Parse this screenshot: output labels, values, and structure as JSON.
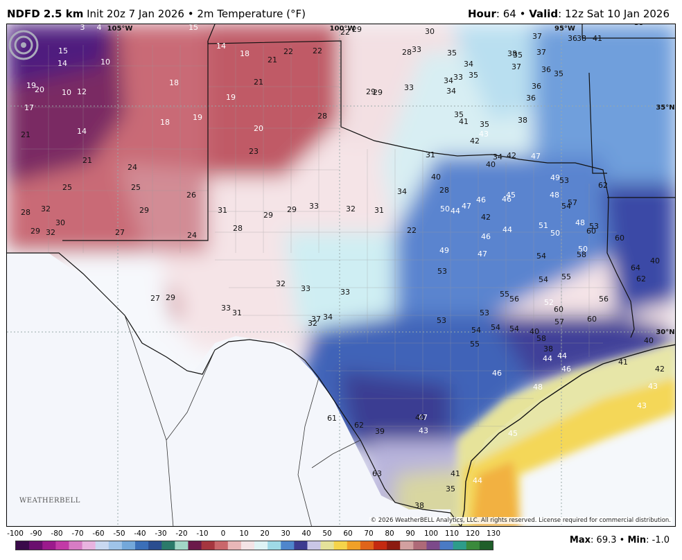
{
  "header": {
    "product": "NDFD 2.5 km",
    "init": "Init 20z 7 Jan 2026",
    "variable": "2m Temperature (°F)",
    "hour_label": "Hour",
    "hour_value": "64",
    "valid_label": "Valid",
    "valid_value": "12z Sat 10 Jan 2026"
  },
  "map": {
    "longitude_labels": [
      "105°W",
      "100°W",
      "95°W"
    ],
    "latitude_labels": [
      "35°N",
      "30°N"
    ],
    "temperature_labels": [
      "3",
      "4",
      "15",
      "15",
      "14",
      "10",
      "19",
      "20",
      "10",
      "12",
      "17",
      "21",
      "14",
      "18",
      "21",
      "18",
      "25",
      "25",
      "24",
      "28",
      "32",
      "30",
      "29",
      "32",
      "29",
      "27",
      "26",
      "14",
      "18",
      "21",
      "22",
      "22",
      "21",
      "19",
      "19",
      "20",
      "23",
      "28",
      "29",
      "29",
      "30",
      "28",
      "31",
      "28",
      "24",
      "22",
      "29",
      "27",
      "29",
      "31",
      "29",
      "29",
      "33",
      "32",
      "31",
      "22",
      "28",
      "34",
      "37",
      "32",
      "33",
      "31",
      "34",
      "32",
      "33",
      "33",
      "33",
      "33",
      "35",
      "33",
      "34",
      "34",
      "34",
      "35",
      "35",
      "35",
      "35",
      "36",
      "36",
      "35",
      "37",
      "36",
      "37",
      "34",
      "38",
      "38",
      "37",
      "36",
      "38",
      "41",
      "39",
      "40",
      "42",
      "42",
      "40",
      "41",
      "43",
      "44",
      "42",
      "45",
      "47",
      "49",
      "51",
      "54",
      "53",
      "57",
      "58",
      "60",
      "62",
      "60",
      "64",
      "62",
      "40",
      "40",
      "41",
      "42",
      "43",
      "43",
      "44",
      "45",
      "46",
      "46",
      "44",
      "48",
      "47",
      "46",
      "47",
      "48",
      "50",
      "50",
      "53",
      "52",
      "54",
      "53",
      "54",
      "55",
      "56",
      "57",
      "54",
      "58",
      "40",
      "38",
      "44",
      "44",
      "46",
      "47",
      "46",
      "48",
      "50",
      "53",
      "53",
      "49",
      "54",
      "55",
      "56",
      "54",
      "55",
      "60",
      "60",
      "61",
      "62",
      "63",
      "39",
      "40",
      "43",
      "41",
      "38",
      "35"
    ],
    "copyright": "© 2026 WeatherBELL Analytics, LLC. All rights reserved. License required for commercial distribution.",
    "logo_text": "WEATHERBELL"
  },
  "legend": {
    "ticks": [
      "-100",
      "-90",
      "-80",
      "-70",
      "-60",
      "-50",
      "-40",
      "-30",
      "-20",
      "-10",
      "0",
      "10",
      "20",
      "30",
      "40",
      "50",
      "60",
      "70",
      "80",
      "90",
      "100",
      "110",
      "120",
      "130"
    ],
    "colors": [
      "#3a0a4a",
      "#6a0f6e",
      "#9b1a8c",
      "#c23aa6",
      "#d77cc4",
      "#e8b3df",
      "#c9d8f0",
      "#9fc3e8",
      "#74a8da",
      "#3b6fb8",
      "#2a4d8f",
      "#2b7a6a",
      "#a2d6c6",
      "#6b1a4a",
      "#a5363f",
      "#c9676b",
      "#e8b7b8",
      "#f3e3e6",
      "#dff3f5",
      "#9fd9e6",
      "#4f86cc",
      "#3d3b8f",
      "#c9c6e6",
      "#e4e29a",
      "#f5d44a",
      "#f0a028",
      "#e0641a",
      "#c42a10",
      "#8c1b10",
      "#d2a0a0",
      "#ae6a78",
      "#7c4a8a",
      "#4a7ac4",
      "#2d9c8a",
      "#3a8a3c",
      "#1f5e2a"
    ],
    "max_label": "Max",
    "max_value": "69.3",
    "min_label": "Min",
    "min_value": "-1.0"
  }
}
